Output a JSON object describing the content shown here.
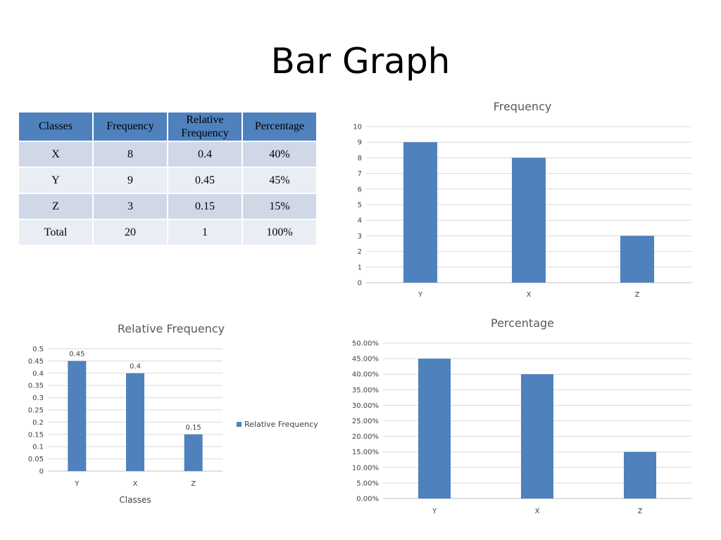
{
  "page": {
    "title": "Bar Graph"
  },
  "table": {
    "headers": [
      "Classes",
      "Frequency",
      "Relative Frequency",
      "Percentage"
    ],
    "rows": [
      [
        "X",
        "8",
        "0.4",
        "40%"
      ],
      [
        "Y",
        "9",
        "0.45",
        "45%"
      ],
      [
        "Z",
        "3",
        "0.15",
        "15%"
      ],
      [
        "Total",
        "20",
        "1",
        "100%"
      ]
    ],
    "header_color": "#4f81bd",
    "row_colors": [
      "#d0d8e8",
      "#e9edf4"
    ]
  },
  "chart_data": [
    {
      "id": "frequency",
      "type": "bar",
      "title": "Frequency",
      "categories": [
        "Y",
        "X",
        "Z"
      ],
      "series": [
        {
          "values": [
            9,
            8,
            3
          ]
        }
      ],
      "ylim": [
        0,
        10
      ],
      "yticks": [
        "0",
        "1",
        "2",
        "3",
        "4",
        "5",
        "6",
        "7",
        "8",
        "9",
        "10"
      ],
      "grid": true,
      "color": "#4f81bd"
    },
    {
      "id": "relative",
      "type": "bar",
      "title": "Relative Frequency",
      "xlabel": "Classes",
      "categories": [
        "Y",
        "X",
        "Z"
      ],
      "series": [
        {
          "name": "Relative Frequency",
          "values": [
            0.45,
            0.4,
            0.15
          ]
        }
      ],
      "data_labels": [
        "0.45",
        "0.4",
        "0.15"
      ],
      "ylim": [
        0,
        0.5
      ],
      "yticks": [
        "0",
        "0.05",
        "0.1",
        "0.15",
        "0.2",
        "0.25",
        "0.3",
        "0.35",
        "0.4",
        "0.45",
        "0.5"
      ],
      "grid": true,
      "legend": "right",
      "color": "#4f81bd"
    },
    {
      "id": "percentage",
      "type": "bar",
      "title": "Percentage",
      "categories": [
        "Y",
        "X",
        "Z"
      ],
      "series": [
        {
          "values": [
            45,
            40,
            15
          ]
        }
      ],
      "ylim": [
        0,
        50
      ],
      "yticks": [
        "0.00%",
        "5.00%",
        "10.00%",
        "15.00%",
        "20.00%",
        "25.00%",
        "30.00%",
        "35.00%",
        "40.00%",
        "45.00%",
        "50.00%"
      ],
      "grid": true,
      "color": "#4f81bd"
    }
  ]
}
